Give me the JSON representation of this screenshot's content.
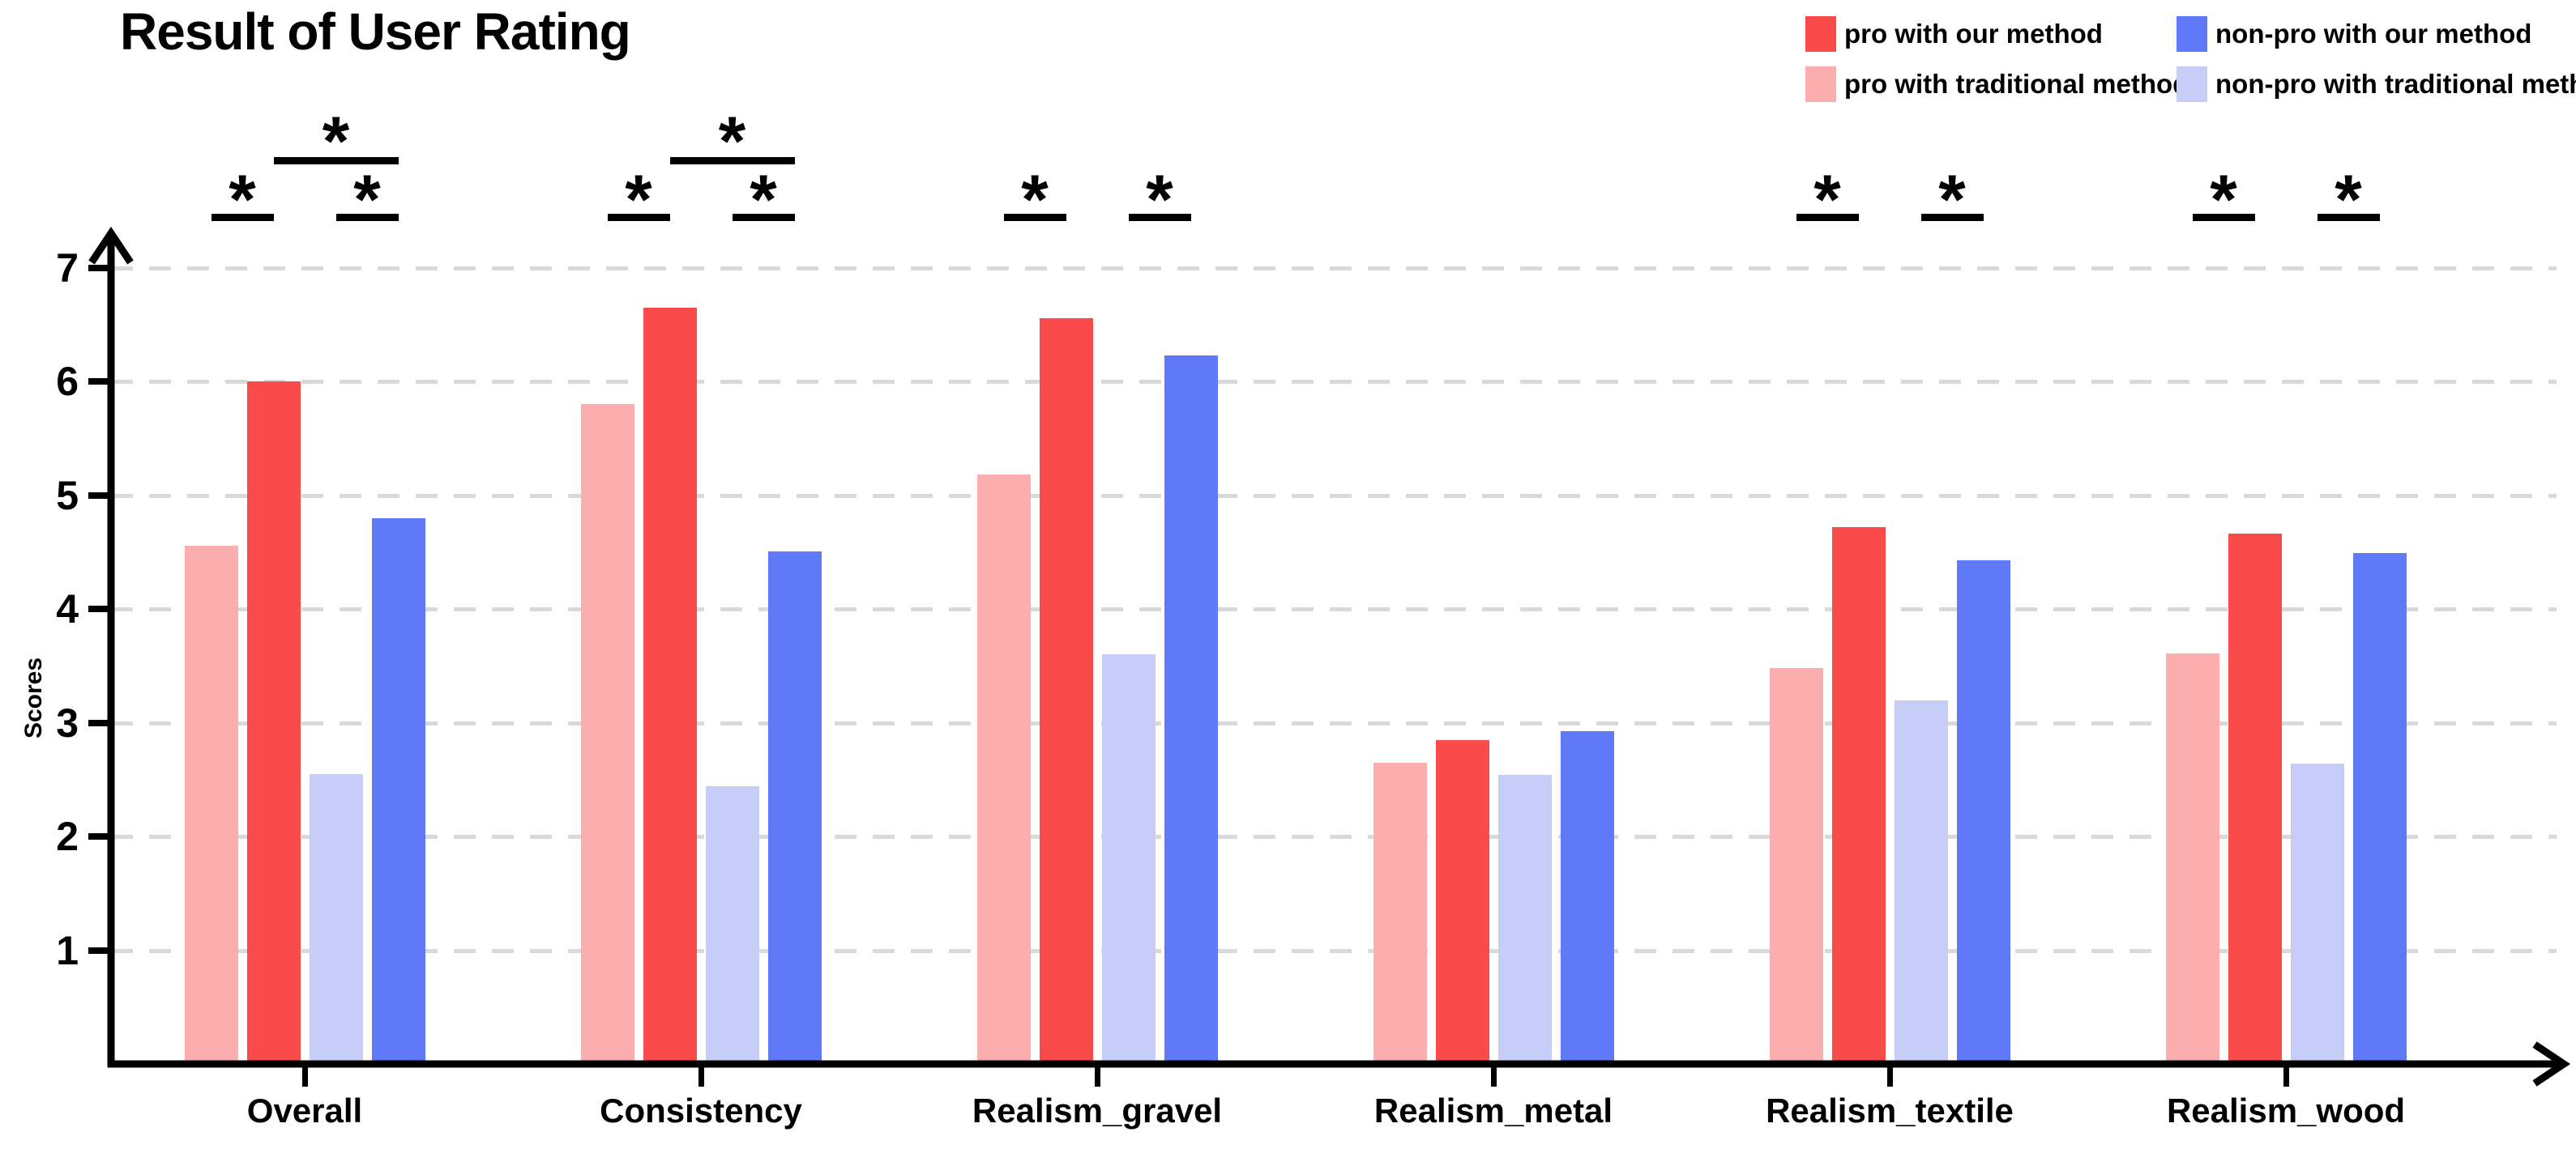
{
  "chart_data": {
    "type": "bar",
    "title": "Result of User Rating",
    "ylabel": "Scores",
    "xlabel": "",
    "ylim": [
      0,
      7.4
    ],
    "yticks": [
      1,
      2,
      3,
      4,
      5,
      6,
      7
    ],
    "grid": "horizontal-dashed",
    "legend_position": "top-right",
    "categories": [
      "Overall",
      "Consistency",
      "Realism_gravel",
      "Realism_metal",
      "Realism_textile",
      "Realism_wood"
    ],
    "bar_order": [
      "pro_traditional",
      "pro_our",
      "nonpro_traditional",
      "nonpro_our"
    ],
    "legend_columns": [
      [
        "pro_our",
        "pro_traditional"
      ],
      [
        "nonpro_our",
        "nonpro_traditional"
      ]
    ],
    "series": [
      {
        "key": "pro_our",
        "name": "pro with our method",
        "color": "#FA4B4B",
        "values": [
          5.97,
          6.62,
          6.53,
          2.82,
          4.69,
          4.63
        ]
      },
      {
        "key": "pro_traditional",
        "name": "pro with traditional method",
        "color": "#FCAEAE",
        "values": [
          4.53,
          5.77,
          5.15,
          2.62,
          3.45,
          3.58
        ]
      },
      {
        "key": "nonpro_our",
        "name": "non-pro with our method",
        "color": "#5F79F8",
        "values": [
          4.77,
          4.48,
          6.2,
          2.9,
          4.4,
          4.46
        ]
      },
      {
        "key": "nonpro_traditional",
        "name": "non-pro with traditional method",
        "color": "#C6CEF8",
        "values": [
          2.52,
          2.41,
          3.57,
          2.51,
          3.17,
          2.61
        ]
      }
    ],
    "significance": [
      {
        "category": "Overall",
        "left_pair": "*",
        "right_pair": "*",
        "across": "*"
      },
      {
        "category": "Consistency",
        "left_pair": "*",
        "right_pair": "*",
        "across": "*"
      },
      {
        "category": "Realism_gravel",
        "left_pair": "*",
        "right_pair": "*",
        "across": null
      },
      {
        "category": "Realism_metal",
        "left_pair": null,
        "right_pair": null,
        "across": null
      },
      {
        "category": "Realism_textile",
        "left_pair": "*",
        "right_pair": "*",
        "across": null
      },
      {
        "category": "Realism_wood",
        "left_pair": "*",
        "right_pair": "*",
        "across": null
      }
    ]
  }
}
